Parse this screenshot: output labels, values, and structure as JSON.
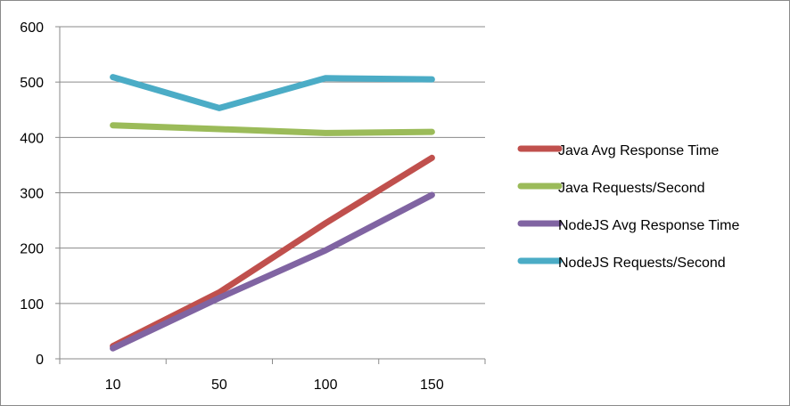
{
  "chart_data": {
    "type": "line",
    "title": "",
    "xlabel": "",
    "ylabel": "",
    "categories": [
      "10",
      "50",
      "100",
      "150"
    ],
    "ylim": [
      0,
      600
    ],
    "yticks": [
      0,
      100,
      200,
      300,
      400,
      500,
      600
    ],
    "grid": true,
    "legend_position": "right",
    "series": [
      {
        "name": "Java Avg Response Time",
        "color": "#C0504D",
        "values": [
          23,
          120,
          245,
          363
        ]
      },
      {
        "name": "Java Requests/Second",
        "color": "#9BBB59",
        "values": [
          422,
          415,
          408,
          410
        ]
      },
      {
        "name": "NodeJS Avg Response Time",
        "color": "#8064A2",
        "values": [
          19,
          110,
          196,
          296
        ]
      },
      {
        "name": "NodeJS Requests/Second",
        "color": "#4BACC6",
        "values": [
          509,
          453,
          507,
          505
        ]
      }
    ]
  }
}
